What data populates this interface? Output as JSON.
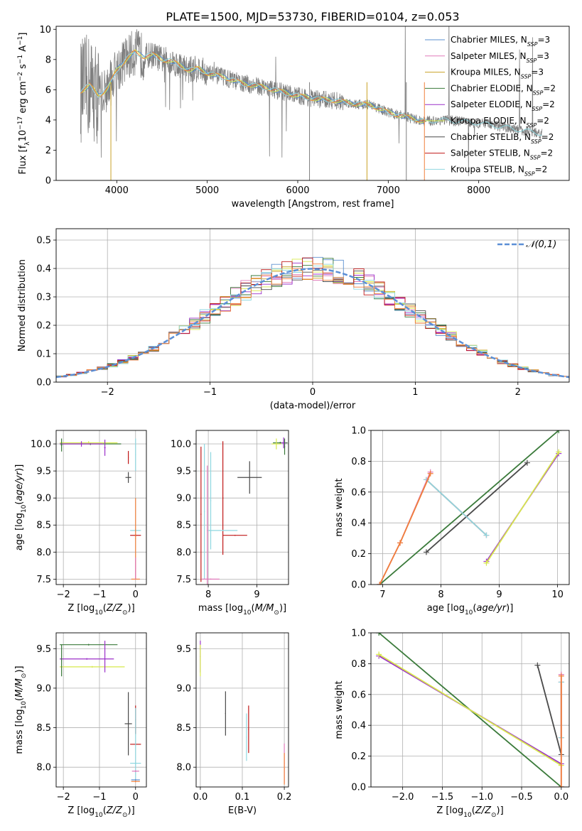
{
  "title": "PLATE=1500, MJD=53730, FIBERID=0104, z=0.053",
  "colors": {
    "gray": "#7f7f7f",
    "chabrier_miles": "#5b8fcf",
    "salpeter_miles": "#e07aba",
    "kroupa_miles": "#c9a227",
    "chabrier_elodie": "#3a7a3a",
    "salpeter_elodie": "#9b30c9",
    "kroupa_elodie": "#d7e84c",
    "chabrier_stelib": "#4a4a4a",
    "salpeter_stelib": "#c01818",
    "kroupa_stelib": "#8fd7e0",
    "orange": "#f07f3a",
    "normal": "#5b8fd6",
    "grid": "#b0b0b0"
  },
  "chart_data": [
    {
      "id": "spectrum",
      "type": "line",
      "xlabel": "wavelength [Angstrom, rest frame]",
      "ylabel": "Flux [f_λ 10^-17 erg cm^-2 s^-1 A^-1]",
      "xlim": [
        3330,
        9000
      ],
      "ylim": [
        0,
        10.2
      ],
      "xticks": [
        4000,
        5000,
        6000,
        7000,
        8000
      ],
      "yticks": [
        0,
        2,
        4,
        6,
        8,
        10
      ],
      "legend_position": "top-right",
      "legend": [
        {
          "imf": "Chabrier",
          "lib": "MILES",
          "nssp": "3",
          "color": "chabrier_miles"
        },
        {
          "imf": "Salpeter",
          "lib": "MILES",
          "nssp": "3",
          "color": "salpeter_miles"
        },
        {
          "imf": "Kroupa",
          "lib": "MILES",
          "nssp": "3",
          "color": "kroupa_miles"
        },
        {
          "imf": "Chabrier",
          "lib": "ELODIE",
          "nssp": "2",
          "color": "chabrier_elodie"
        },
        {
          "imf": "Salpeter",
          "lib": "ELODIE",
          "nssp": "2",
          "color": "salpeter_elodie"
        },
        {
          "imf": "Kroupa",
          "lib": "ELODIE",
          "nssp": "2",
          "color": "kroupa_elodie"
        },
        {
          "imf": "Chabrier",
          "lib": "STELIB",
          "nssp": "2",
          "color": "chabrier_stelib"
        },
        {
          "imf": "Salpeter",
          "lib": "STELIB",
          "nssp": "2",
          "color": "salpeter_stelib"
        },
        {
          "imf": "Kroupa",
          "lib": "STELIB",
          "nssp": "2",
          "color": "kroupa_stelib"
        }
      ],
      "continuum": [
        [
          3600,
          5.9
        ],
        [
          3700,
          6.3
        ],
        [
          3800,
          5.6
        ],
        [
          3900,
          6.1
        ],
        [
          4000,
          7.3
        ],
        [
          4100,
          8.0
        ],
        [
          4200,
          8.5
        ],
        [
          4300,
          8.2
        ],
        [
          4400,
          8.3
        ],
        [
          4500,
          8.0
        ],
        [
          4600,
          7.9
        ],
        [
          4700,
          7.6
        ],
        [
          4800,
          7.3
        ],
        [
          4900,
          7.4
        ],
        [
          5000,
          7.1
        ],
        [
          5200,
          6.8
        ],
        [
          5400,
          6.4
        ],
        [
          5600,
          6.2
        ],
        [
          5800,
          5.9
        ],
        [
          6000,
          5.6
        ],
        [
          6200,
          5.4
        ],
        [
          6400,
          5.3
        ],
        [
          6600,
          5.1
        ],
        [
          6800,
          5.0
        ],
        [
          7000,
          4.5
        ],
        [
          7200,
          4.2
        ],
        [
          7400,
          3.9
        ],
        [
          7600,
          4.0
        ],
        [
          7800,
          3.9
        ],
        [
          8000,
          3.8
        ],
        [
          8200,
          3.6
        ],
        [
          8400,
          3.4
        ],
        [
          8600,
          3.2
        ],
        [
          8700,
          3.1
        ]
      ]
    },
    {
      "id": "residuals",
      "type": "step",
      "xlabel": "(data-model)/error",
      "ylabel": "Normed distribution",
      "xlim": [
        -2.5,
        2.5
      ],
      "ylim": [
        0,
        0.54
      ],
      "xticks": [
        -2,
        -1,
        0,
        1,
        2
      ],
      "yticks": [
        0.0,
        0.1,
        0.2,
        0.3,
        0.4,
        0.5
      ],
      "legend": "𝒩(0,1)",
      "legend_position": "top-right"
    },
    {
      "id": "age_vs_Z",
      "type": "errorbar",
      "xlabel": "Z [log10(Z/Z☉)]",
      "ylabel": "age [log10(age/yr)]",
      "xlim": [
        -2.2,
        0.3
      ],
      "ylim": [
        7.4,
        10.25
      ],
      "xticks": [
        -2,
        -1,
        0
      ],
      "yticks": [
        7.5,
        8.0,
        8.5,
        9.0,
        9.5,
        10.0
      ],
      "points": [
        {
          "x": -1.25,
          "y": 10.0,
          "xerr": 0.85,
          "yerr": 0.02,
          "color": "chabrier_elodie"
        },
        {
          "x": -1.3,
          "y": 10.02,
          "xerr": 0.8,
          "yerr": 0.03,
          "color": "kroupa_elodie"
        },
        {
          "x": -1.5,
          "y": 10.0,
          "xerr": 0.6,
          "yerr": 0.05,
          "color": "salpeter_elodie"
        },
        {
          "x": -0.85,
          "y": 9.93,
          "xerr": 0.02,
          "yerr": 0.15,
          "color": "salpeter_elodie"
        },
        {
          "x": -2.05,
          "y": 9.98,
          "xerr": 0.02,
          "yerr": 0.12,
          "color": "chabrier_elodie"
        },
        {
          "x": -0.2,
          "y": 9.38,
          "xerr": 0.08,
          "yerr": 0.1,
          "color": "chabrier_stelib"
        },
        {
          "x": -0.2,
          "y": 9.75,
          "xerr": 0.01,
          "yerr": 0.12,
          "color": "salpeter_stelib"
        },
        {
          "x": 0.0,
          "y": 8.4,
          "xerr": 0.15,
          "yerr": 0.03,
          "color": "kroupa_stelib"
        },
        {
          "x": 0.0,
          "y": 8.31,
          "xerr": 0.15,
          "yerr": 0.02,
          "color": "salpeter_stelib"
        },
        {
          "x": 0.0,
          "y": 9.8,
          "xerr": 0.01,
          "yerr": 0.3,
          "color": "kroupa_stelib"
        },
        {
          "x": 0.0,
          "y": 7.5,
          "xerr": 0.12,
          "yerr": 0.01,
          "color": "orange"
        },
        {
          "x": 0.0,
          "y": 8.25,
          "xerr": 0.01,
          "yerr": 0.75,
          "color": "orange"
        },
        {
          "x": 0.0,
          "y": 7.7,
          "xerr": 0.01,
          "yerr": 0.2,
          "color": "salpeter_miles"
        }
      ]
    },
    {
      "id": "age_vs_mass",
      "type": "errorbar",
      "xlabel": "mass [log10(M/M☉)]",
      "xlim": [
        7.75,
        9.65
      ],
      "ylim": [
        7.4,
        10.25
      ],
      "xticks": [
        8,
        9
      ],
      "yticks": [
        7.5,
        8.0,
        8.5,
        9.0,
        9.5,
        10.0
      ],
      "points": [
        {
          "x": 9.48,
          "y": 10.02,
          "xerr": 0.15,
          "yerr": 0.02,
          "color": "chabrier_elodie"
        },
        {
          "x": 9.4,
          "y": 10.0,
          "xerr": 0.1,
          "yerr": 0.1,
          "color": "kroupa_elodie"
        },
        {
          "x": 9.55,
          "y": 10.02,
          "xerr": 0.05,
          "yerr": 0.1,
          "color": "salpeter_elodie"
        },
        {
          "x": 9.57,
          "y": 9.95,
          "xerr": 0.01,
          "yerr": 0.15,
          "color": "chabrier_elodie"
        },
        {
          "x": 8.85,
          "y": 9.38,
          "xerr": 0.25,
          "yerr": 0.3,
          "color": "chabrier_stelib"
        },
        {
          "x": 8.3,
          "y": 9.0,
          "xerr": 0.01,
          "yerr": 1.05,
          "color": "salpeter_stelib"
        },
        {
          "x": 8.55,
          "y": 8.31,
          "xerr": 0.25,
          "yerr": 0.01,
          "color": "salpeter_stelib"
        },
        {
          "x": 8.3,
          "y": 8.4,
          "xerr": 0.3,
          "yerr": 0.01,
          "color": "kroupa_stelib"
        },
        {
          "x": 8.05,
          "y": 8.95,
          "xerr": 0.01,
          "yerr": 0.9,
          "color": "kroupa_stelib"
        },
        {
          "x": 7.92,
          "y": 8.75,
          "xerr": 0.01,
          "yerr": 1.25,
          "color": "kroupa_stelib"
        },
        {
          "x": 7.98,
          "y": 8.4,
          "xerr": 0.01,
          "yerr": 1.2,
          "color": "salpeter_miles"
        },
        {
          "x": 8.05,
          "y": 7.5,
          "xerr": 0.18,
          "yerr": 0.01,
          "color": "salpeter_miles"
        },
        {
          "x": 7.85,
          "y": 8.7,
          "xerr": 0.01,
          "yerr": 1.25,
          "color": "salpeter_stelib"
        }
      ]
    },
    {
      "id": "weight_vs_age",
      "type": "line",
      "xlabel": "age [log10(age/yr)]",
      "ylabel": "mass weight",
      "xlim": [
        6.8,
        10.2
      ],
      "ylim": [
        0,
        1
      ],
      "xticks": [
        7,
        8,
        9,
        10
      ],
      "yticks": [
        0.0,
        0.2,
        0.4,
        0.6,
        0.8,
        1.0
      ],
      "series": [
        {
          "x": [
            6.95,
            10.02
          ],
          "y": [
            0.0,
            1.0
          ],
          "color": "chabrier_elodie"
        },
        {
          "x": [
            7.75,
            9.48
          ],
          "y": [
            0.21,
            0.79
          ],
          "color": "chabrier_stelib"
        },
        {
          "x": [
            8.78,
            10.02
          ],
          "y": [
            0.15,
            0.85
          ],
          "color": "salpeter_elodie"
        },
        {
          "x": [
            8.78,
            10.02
          ],
          "y": [
            0.14,
            0.86
          ],
          "color": "kroupa_elodie"
        },
        {
          "x": [
            7.75,
            8.78
          ],
          "y": [
            0.68,
            0.32
          ],
          "color": "salpeter_stelib"
        },
        {
          "x": [
            7.75,
            8.78
          ],
          "y": [
            0.68,
            0.32
          ],
          "color": "kroupa_stelib"
        },
        {
          "x": [
            6.95,
            7.3,
            7.82
          ],
          "y": [
            0.0,
            0.27,
            0.73
          ],
          "color": "salpeter_miles"
        },
        {
          "x": [
            6.95,
            7.3,
            7.82
          ],
          "y": [
            0.0,
            0.27,
            0.72
          ],
          "color": "orange"
        }
      ]
    },
    {
      "id": "mass_vs_Z",
      "type": "errorbar",
      "xlabel": "Z [log10(Z/Z☉)]",
      "ylabel": "mass [log10(M/M☉)]",
      "xlim": [
        -2.2,
        0.3
      ],
      "ylim": [
        7.75,
        9.7
      ],
      "xticks": [
        -2,
        -1,
        0
      ],
      "yticks": [
        8.0,
        8.5,
        9.0,
        9.5
      ],
      "points": [
        {
          "x": -1.3,
          "y": 9.55,
          "xerr": 0.8,
          "yerr": 0.01,
          "color": "chabrier_elodie"
        },
        {
          "x": -1.35,
          "y": 9.37,
          "xerr": 0.75,
          "yerr": 0.01,
          "color": "salpeter_elodie"
        },
        {
          "x": -1.2,
          "y": 9.27,
          "xerr": 0.9,
          "yerr": 0.01,
          "color": "kroupa_elodie"
        },
        {
          "x": -2.05,
          "y": 9.35,
          "xerr": 0.01,
          "yerr": 0.2,
          "color": "chabrier_elodie"
        },
        {
          "x": -0.85,
          "y": 9.4,
          "xerr": 0.01,
          "yerr": 0.2,
          "color": "salpeter_elodie"
        },
        {
          "x": -0.2,
          "y": 8.55,
          "xerr": 0.1,
          "yerr": 0.4,
          "color": "chabrier_stelib"
        },
        {
          "x": 0.0,
          "y": 8.29,
          "xerr": 0.15,
          "yerr": 0.01,
          "color": "salpeter_stelib"
        },
        {
          "x": 0.0,
          "y": 8.6,
          "xerr": 0.01,
          "yerr": 0.18,
          "color": "salpeter_stelib"
        },
        {
          "x": 0.0,
          "y": 8.05,
          "xerr": 0.15,
          "yerr": 0.01,
          "color": "kroupa_stelib"
        },
        {
          "x": 0.0,
          "y": 8.3,
          "xerr": 0.01,
          "yerr": 0.45,
          "color": "kroupa_stelib"
        },
        {
          "x": 0.0,
          "y": 7.95,
          "xerr": 0.1,
          "yerr": 0.01,
          "color": "salpeter_miles"
        },
        {
          "x": 0.0,
          "y": 7.84,
          "xerr": 0.12,
          "yerr": 0.01,
          "color": "chabrier_miles"
        },
        {
          "x": 0.0,
          "y": 7.82,
          "xerr": 0.12,
          "yerr": 0.01,
          "color": "orange"
        }
      ]
    },
    {
      "id": "mass_vs_ebv",
      "type": "errorbar",
      "xlabel": "E(B-V)",
      "xlim": [
        -0.01,
        0.21
      ],
      "ylim": [
        7.75,
        9.7
      ],
      "xticks": [
        0.0,
        0.1,
        0.2
      ],
      "yticks": [
        8.0,
        8.5,
        9.0,
        9.5
      ],
      "points": [
        {
          "x": 0.0,
          "y": 9.4,
          "xerr": 0.001,
          "yerr": 0.2,
          "color": "salpeter_elodie"
        },
        {
          "x": 0.0,
          "y": 9.35,
          "xerr": 0.001,
          "yerr": 0.2,
          "color": "kroupa_elodie"
        },
        {
          "x": 0.06,
          "y": 8.68,
          "xerr": 0.001,
          "yerr": 0.28,
          "color": "chabrier_stelib"
        },
        {
          "x": 0.115,
          "y": 8.48,
          "xerr": 0.001,
          "yerr": 0.3,
          "color": "salpeter_stelib"
        },
        {
          "x": 0.11,
          "y": 8.38,
          "xerr": 0.001,
          "yerr": 0.3,
          "color": "kroupa_stelib"
        },
        {
          "x": 0.2,
          "y": 8.05,
          "xerr": 0.001,
          "yerr": 0.25,
          "color": "salpeter_miles"
        },
        {
          "x": 0.2,
          "y": 7.98,
          "xerr": 0.001,
          "yerr": 0.2,
          "color": "orange"
        }
      ]
    },
    {
      "id": "weight_vs_Z",
      "type": "line",
      "xlabel": "Z [log10(Z/Z☉)]",
      "ylabel": "mass weight",
      "xlim": [
        -2.4,
        0.1
      ],
      "ylim": [
        0,
        1
      ],
      "xticks": [
        -2.0,
        -1.5,
        -1.0,
        -0.5,
        0.0
      ],
      "yticks": [
        0.0,
        0.2,
        0.4,
        0.6,
        0.8,
        1.0
      ],
      "series": [
        {
          "x": [
            -2.3,
            0.0
          ],
          "y": [
            1.0,
            0.0
          ],
          "color": "chabrier_elodie"
        },
        {
          "x": [
            -2.3,
            0.0
          ],
          "y": [
            0.85,
            0.15
          ],
          "color": "salpeter_elodie"
        },
        {
          "x": [
            -2.3,
            0.0
          ],
          "y": [
            0.86,
            0.14
          ],
          "color": "kroupa_elodie"
        },
        {
          "x": [
            -0.3,
            0.0
          ],
          "y": [
            0.79,
            0.21
          ],
          "color": "chabrier_stelib"
        },
        {
          "x": [
            0.0,
            0.0
          ],
          "y": [
            0.32,
            0.68
          ],
          "color": "salpeter_stelib"
        },
        {
          "x": [
            0.0,
            0.0
          ],
          "y": [
            0.32,
            0.68
          ],
          "color": "kroupa_stelib"
        },
        {
          "x": [
            0.0,
            0.0
          ],
          "y": [
            0.0,
            0.73
          ],
          "color": "salpeter_miles"
        },
        {
          "x": [
            0.0,
            0.0
          ],
          "y": [
            0.0,
            0.72
          ],
          "color": "orange"
        }
      ]
    }
  ]
}
